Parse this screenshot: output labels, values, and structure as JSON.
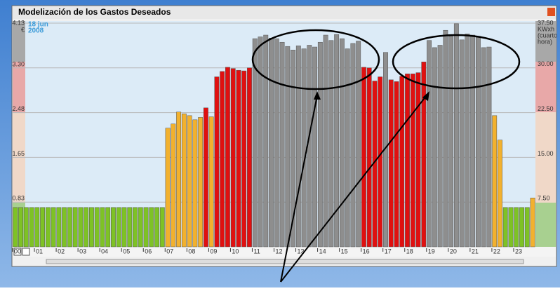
{
  "chart_data": {
    "type": "bar",
    "title": "Modelización de los Gastos Deseados",
    "date_label": [
      "18 jun",
      "2008"
    ],
    "ylabel": "€",
    "y2label": [
      "KWxh",
      "(cuarto",
      "hora)"
    ],
    "ylim": [
      0,
      4.13
    ],
    "yticks": [
      0.83,
      1.65,
      2.48,
      {
        "value": 3.3,
        "label": "3.30"
      },
      4.13
    ],
    "y2lim": [
      0,
      37.5
    ],
    "y2ticks": [
      {
        "value": 7.5,
        "label": "7.50"
      },
      {
        "value": 15,
        "label": "15.00"
      },
      {
        "value": 22.5,
        "label": "22.50"
      },
      {
        "value": 30,
        "label": "30.00"
      },
      {
        "value": 37.5,
        "label": "37.50"
      }
    ],
    "grid": true,
    "categories": [
      "00",
      null,
      null,
      null,
      "01",
      null,
      null,
      null,
      "02",
      null,
      null,
      null,
      "03",
      null,
      null,
      null,
      "04",
      null,
      null,
      null,
      "05",
      null,
      null,
      null,
      "06",
      null,
      null,
      null,
      "07",
      null,
      null,
      null,
      "08",
      null,
      null,
      null,
      "09",
      null,
      null,
      null,
      "10",
      null,
      null,
      null,
      "11",
      null,
      null,
      null,
      "12",
      null,
      null,
      null,
      "13",
      null,
      null,
      null,
      "14",
      null,
      null,
      null,
      "15",
      null,
      null,
      null,
      "16",
      null,
      null,
      null,
      "17",
      null,
      null,
      null,
      "18",
      null,
      null,
      null,
      "19",
      null,
      null,
      null,
      "20",
      null,
      null,
      null,
      "21",
      null,
      null,
      null,
      "22",
      null,
      null,
      null,
      "23",
      null,
      null,
      null
    ],
    "series": [
      {
        "axis": "y2",
        "values": [
          6.6,
          6.6,
          6.6,
          6.6,
          6.6,
          6.6,
          6.6,
          6.6,
          6.6,
          6.6,
          6.6,
          6.6,
          6.6,
          6.6,
          6.6,
          6.6,
          6.6,
          6.6,
          6.6,
          6.6,
          6.6,
          6.6,
          6.6,
          6.6,
          6.6,
          6.6,
          6.6,
          6.6,
          19.9,
          20.6,
          22.6,
          22.3,
          22.0,
          21.3,
          21.7,
          23.3,
          21.8,
          28.5,
          29.4,
          30.1,
          29.9,
          29.6,
          29.5,
          30.0,
          34.9,
          35.2,
          35.5,
          35.0,
          34.9,
          34.3,
          33.6,
          33.0,
          33.7,
          33.2,
          33.8,
          33.5,
          34.3,
          35.5,
          34.6,
          35.6,
          34.9,
          33.2,
          34.1,
          34.5,
          30.1,
          30.0,
          27.8,
          28.5,
          32.6,
          28.0,
          27.7,
          28.6,
          29.0,
          29.0,
          29.2,
          31.0,
          34.6,
          33.4,
          33.8,
          36.3,
          35.3,
          37.4,
          34.7,
          35.7,
          35.5,
          35.3,
          33.4,
          33.5,
          22.0,
          17.9,
          6.6,
          6.6,
          6.6,
          6.6,
          6.6,
          8.2
        ],
        "colors": [
          "#7ec225",
          "#7ec225",
          "#7ec225",
          "#7ec225",
          "#7ec225",
          "#7ec225",
          "#7ec225",
          "#7ec225",
          "#7ec225",
          "#7ec225",
          "#7ec225",
          "#7ec225",
          "#7ec225",
          "#7ec225",
          "#7ec225",
          "#7ec225",
          "#7ec225",
          "#7ec225",
          "#7ec225",
          "#7ec225",
          "#7ec225",
          "#7ec225",
          "#7ec225",
          "#7ec225",
          "#7ec225",
          "#7ec225",
          "#7ec225",
          "#7ec225",
          "#f2b12e",
          "#f2b12e",
          "#f2b12e",
          "#f2b12e",
          "#f2b12e",
          "#f2b12e",
          "#f2b12e",
          "#e01010",
          "#f2b12e",
          "#e01010",
          "#e01010",
          "#e01010",
          "#e01010",
          "#e01010",
          "#e01010",
          "#e01010",
          "#8e8e8e",
          "#8e8e8e",
          "#8e8e8e",
          "#8e8e8e",
          "#8e8e8e",
          "#8e8e8e",
          "#8e8e8e",
          "#8e8e8e",
          "#8e8e8e",
          "#8e8e8e",
          "#8e8e8e",
          "#8e8e8e",
          "#8e8e8e",
          "#8e8e8e",
          "#8e8e8e",
          "#8e8e8e",
          "#8e8e8e",
          "#8e8e8e",
          "#8e8e8e",
          "#8e8e8e",
          "#e01010",
          "#e01010",
          "#e01010",
          "#e01010",
          "#8e8e8e",
          "#e01010",
          "#e01010",
          "#e01010",
          "#e01010",
          "#e01010",
          "#e01010",
          "#e01010",
          "#8e8e8e",
          "#8e8e8e",
          "#8e8e8e",
          "#8e8e8e",
          "#8e8e8e",
          "#8e8e8e",
          "#8e8e8e",
          "#8e8e8e",
          "#8e8e8e",
          "#8e8e8e",
          "#8e8e8e",
          "#8e8e8e",
          "#f2b12e",
          "#f2b12e",
          "#7ec225",
          "#7ec225",
          "#7ec225",
          "#7ec225",
          "#7ec225",
          "#f2b12e"
        ]
      }
    ]
  }
}
